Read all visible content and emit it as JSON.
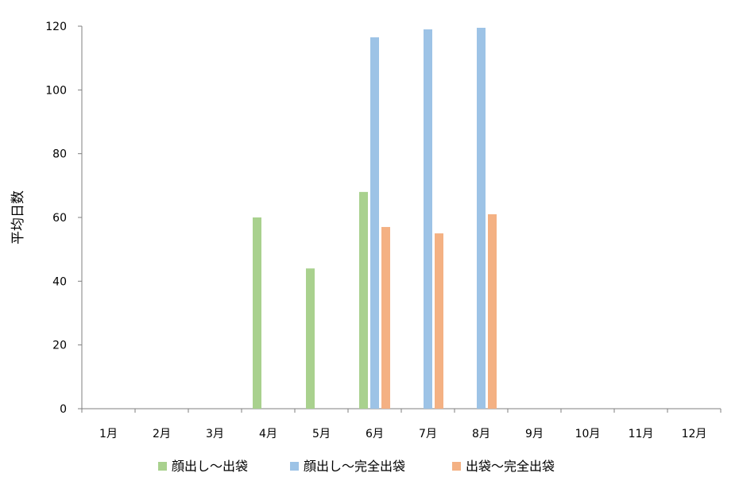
{
  "chart_data": {
    "type": "bar",
    "title": "",
    "xlabel": "",
    "ylabel": "平均日数",
    "ylim": [
      0,
      120
    ],
    "yticks": [
      0,
      20,
      40,
      60,
      80,
      100,
      120
    ],
    "categories": [
      "1月",
      "2月",
      "3月",
      "4月",
      "5月",
      "6月",
      "7月",
      "8月",
      "9月",
      "10月",
      "11月",
      "12月"
    ],
    "series": [
      {
        "name": "顔出し～出袋",
        "color": "#a9d18e",
        "values": [
          null,
          null,
          null,
          60,
          44,
          68,
          null,
          null,
          null,
          null,
          null,
          null
        ]
      },
      {
        "name": "顔出し～完全出袋",
        "color": "#9dc3e6",
        "values": [
          null,
          null,
          null,
          null,
          null,
          116.5,
          119,
          119.5,
          null,
          null,
          null,
          null
        ]
      },
      {
        "name": "出袋～完全出袋",
        "color": "#f4b183",
        "values": [
          null,
          null,
          null,
          null,
          null,
          57,
          55,
          61,
          null,
          null,
          null,
          null
        ]
      }
    ],
    "grid": false,
    "legend_position": "bottom"
  }
}
